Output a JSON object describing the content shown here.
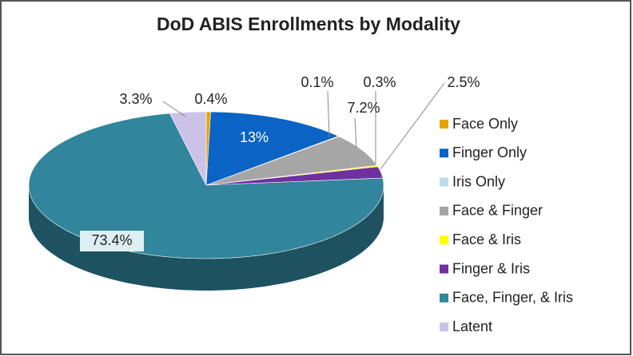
{
  "chart_data": {
    "type": "pie",
    "title": "DoD ABIS Enrollments by Modality",
    "categories": [
      "Face Only",
      "Finger Only",
      "Iris Only",
      "Face & Finger",
      "Face & Iris",
      "Finger & Iris",
      "Face, Finger, & Iris",
      "Latent"
    ],
    "values": [
      0.4,
      13,
      0.1,
      7.2,
      0.3,
      2.5,
      73.4,
      3.3
    ],
    "value_labels": [
      "0.4%",
      "13%",
      "0.1%",
      "7.2%",
      "0.3%",
      "2.5%",
      "73.4%",
      "3.3%"
    ],
    "colors": [
      "#e8a400",
      "#0b63c5",
      "#b9dde8",
      "#a6a6a6",
      "#ffff00",
      "#7030a0",
      "#31859c",
      "#ccc2e8"
    ],
    "legend": "right"
  }
}
